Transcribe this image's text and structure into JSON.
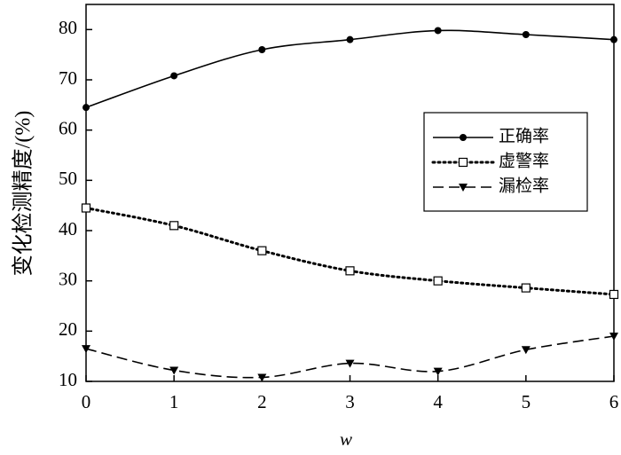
{
  "chart_data": {
    "type": "line",
    "x_label": "w",
    "y_label": "变化检测精度/(%)",
    "x": [
      0,
      1,
      2,
      3,
      4,
      5,
      6
    ],
    "xlim": [
      0,
      6
    ],
    "xticks": [
      0,
      1,
      2,
      3,
      4,
      5,
      6
    ],
    "ylim": [
      10,
      85
    ],
    "yticks": [
      10,
      20,
      30,
      40,
      50,
      60,
      70,
      80
    ],
    "legend": "upper right",
    "series": [
      {
        "name": "正确率",
        "color": "#000000",
        "dash": "solid",
        "marker": "circle",
        "values": [
          64.5,
          70.8,
          76,
          78,
          79.8,
          79,
          78
        ]
      },
      {
        "name": "虚警率",
        "color": "#000000",
        "dash": "dotted",
        "marker": "square",
        "values": [
          44.5,
          41,
          36,
          32,
          30,
          28.6,
          27.3
        ]
      },
      {
        "name": "漏检率",
        "color": "#000000",
        "dash": "dashed",
        "marker": "triangle",
        "values": [
          16.5,
          12.2,
          10.8,
          13.6,
          12,
          16.3,
          19
        ]
      }
    ]
  }
}
